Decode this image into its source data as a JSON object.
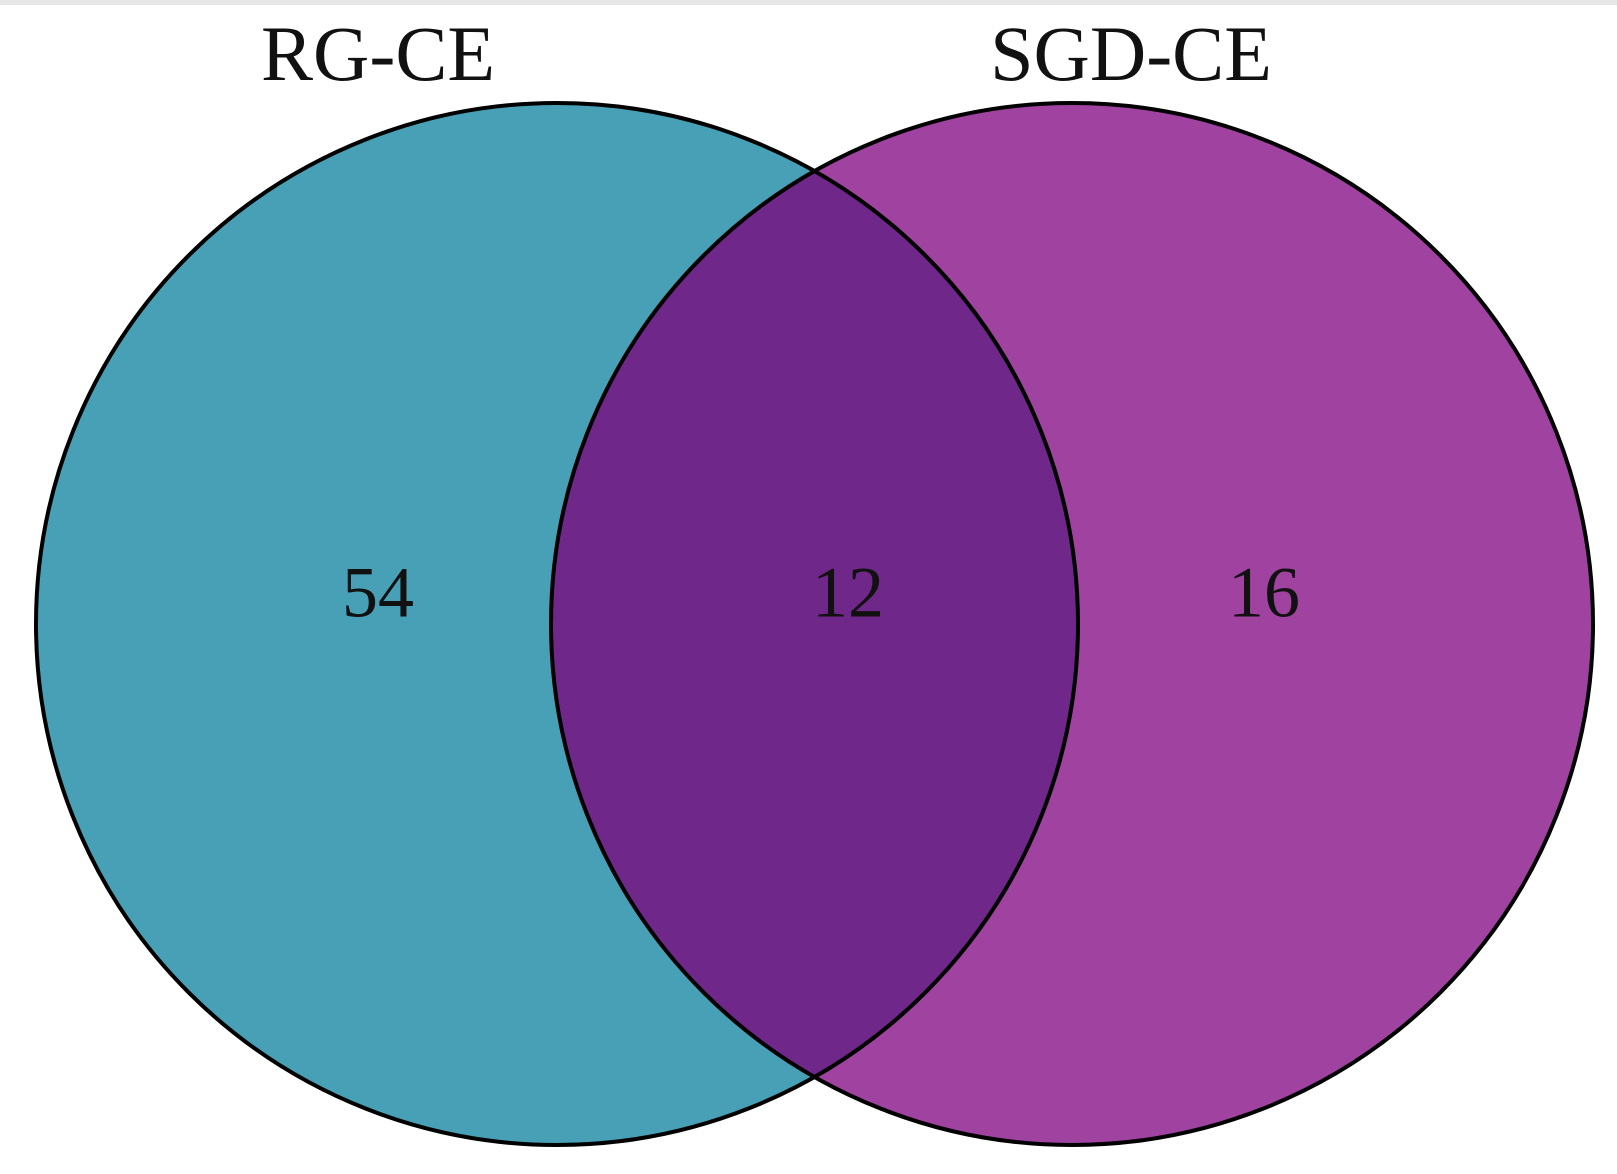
{
  "chart_data": {
    "type": "venn",
    "sets": [
      {
        "name": "RG-CE",
        "color": "#47a0b5",
        "value": 54
      },
      {
        "name": "SGD-CE",
        "color": "#a042a0",
        "value": 16
      }
    ],
    "intersection": {
      "value": 12,
      "color": "#6f2789"
    }
  }
}
